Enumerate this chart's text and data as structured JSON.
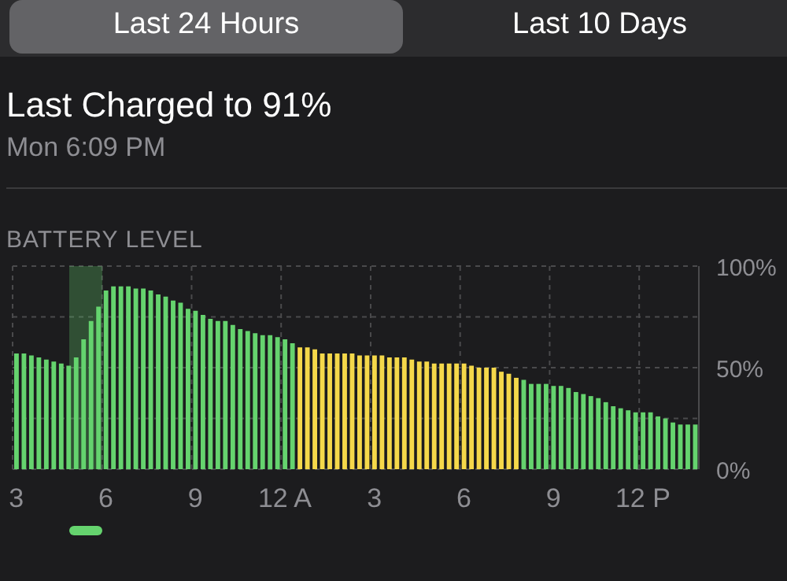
{
  "chart_data": {
    "type": "bar",
    "title": "Last Charged to 91%",
    "subtitle": "Mon 6:09 PM",
    "ylabel": "BATTERY LEVEL",
    "annotations": [
      "Last 24 Hours",
      "Last 10 Days"
    ],
    "categories": [
      "3",
      null,
      null,
      null,
      null,
      null,
      null,
      null,
      null,
      null,
      null,
      null,
      "6",
      null,
      null,
      null,
      null,
      null,
      null,
      null,
      null,
      null,
      null,
      null,
      "9",
      null,
      null,
      null,
      null,
      null,
      null,
      null,
      null,
      null,
      null,
      null,
      "12 A",
      null,
      null,
      null,
      null,
      null,
      null,
      null,
      null,
      null,
      null,
      null,
      "3",
      null,
      null,
      null,
      null,
      null,
      null,
      null,
      null,
      null,
      null,
      null,
      "6",
      null,
      null,
      null,
      null,
      null,
      null,
      null,
      null,
      null,
      null,
      null,
      "9",
      null,
      null,
      null,
      null,
      null,
      null,
      null,
      null,
      null,
      null,
      null,
      "12 P",
      null,
      null,
      null,
      null,
      null,
      null,
      null
    ],
    "values": [
      57,
      57,
      56,
      55,
      54,
      53,
      52,
      51,
      55,
      64,
      73,
      80,
      88,
      90,
      90,
      90,
      89,
      89,
      88,
      86,
      85,
      83,
      82,
      79,
      78,
      76,
      74,
      73,
      73,
      71,
      69,
      68,
      67,
      66,
      66,
      65,
      64,
      62,
      60,
      60,
      59,
      57,
      57,
      57,
      57,
      57,
      56,
      56,
      56,
      56,
      55,
      55,
      55,
      54,
      53,
      53,
      52,
      52,
      52,
      52,
      52,
      51,
      50,
      50,
      50,
      48,
      47,
      45,
      44,
      42,
      42,
      42,
      41,
      41,
      40,
      38,
      37,
      36,
      35,
      33,
      31,
      30,
      29,
      28,
      28,
      28,
      26,
      25,
      23,
      22,
      22,
      22
    ],
    "colors": [
      "#65d36e",
      "#65d36e",
      "#65d36e",
      "#65d36e",
      "#65d36e",
      "#65d36e",
      "#65d36e",
      "#65d36e",
      "#65d36e",
      "#65d36e",
      "#65d36e",
      "#65d36e",
      "#65d36e",
      "#65d36e",
      "#65d36e",
      "#65d36e",
      "#65d36e",
      "#65d36e",
      "#65d36e",
      "#65d36e",
      "#65d36e",
      "#65d36e",
      "#65d36e",
      "#65d36e",
      "#65d36e",
      "#65d36e",
      "#65d36e",
      "#65d36e",
      "#65d36e",
      "#65d36e",
      "#65d36e",
      "#65d36e",
      "#65d36e",
      "#65d36e",
      "#65d36e",
      "#65d36e",
      "#65d36e",
      "#65d36e",
      "#f5d84a",
      "#f5d84a",
      "#f5d84a",
      "#f5d84a",
      "#f5d84a",
      "#f5d84a",
      "#f5d84a",
      "#f5d84a",
      "#f5d84a",
      "#f5d84a",
      "#f5d84a",
      "#f5d84a",
      "#f5d84a",
      "#f5d84a",
      "#f5d84a",
      "#f5d84a",
      "#f5d84a",
      "#f5d84a",
      "#f5d84a",
      "#f5d84a",
      "#f5d84a",
      "#f5d84a",
      "#f5d84a",
      "#f5d84a",
      "#f5d84a",
      "#f5d84a",
      "#f5d84a",
      "#f5d84a",
      "#f5d84a",
      "#f5d84a",
      "#65d36e",
      "#65d36e",
      "#65d36e",
      "#65d36e",
      "#65d36e",
      "#65d36e",
      "#65d36e",
      "#65d36e",
      "#65d36e",
      "#65d36e",
      "#65d36e",
      "#65d36e",
      "#65d36e",
      "#65d36e",
      "#65d36e",
      "#65d36e",
      "#65d36e",
      "#65d36e",
      "#65d36e",
      "#65d36e",
      "#65d36e",
      "#65d36e",
      "#65d36e",
      "#65d36e"
    ],
    "ylim": [
      0,
      100
    ],
    "yticks": [
      {
        "value": 0,
        "label": "0%"
      },
      {
        "value": 25,
        "label": null
      },
      {
        "value": 50,
        "label": "50%"
      },
      {
        "value": 75,
        "label": null
      },
      {
        "value": 100,
        "label": "100%"
      }
    ],
    "grid": true,
    "legend": false
  }
}
